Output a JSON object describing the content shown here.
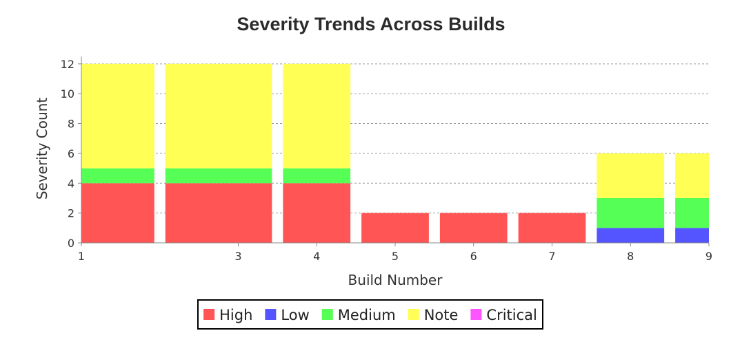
{
  "chart_data": {
    "type": "bar",
    "stacked": true,
    "title": "Severity Trends Across Builds",
    "xlabel": "Build Number",
    "ylabel": "Severity Count",
    "categories": [
      "1",
      "3",
      "4",
      "5",
      "6",
      "7",
      "8",
      "9"
    ],
    "x_ticks": [
      "1",
      "3",
      "4",
      "5",
      "6",
      "7",
      "8",
      "9"
    ],
    "y_ticks": [
      "0",
      "2",
      "4",
      "6",
      "8",
      "10",
      "12"
    ],
    "ylim": [
      0,
      12.5
    ],
    "grid": true,
    "legend_position": "bottom",
    "series": [
      {
        "name": "High",
        "color": "#ff5555",
        "values": [
          4,
          4,
          4,
          2,
          2,
          2,
          0,
          0
        ]
      },
      {
        "name": "Low",
        "color": "#5555ff",
        "values": [
          0,
          0,
          0,
          0,
          0,
          0,
          1,
          1
        ]
      },
      {
        "name": "Medium",
        "color": "#55ff55",
        "values": [
          1,
          1,
          1,
          0,
          0,
          0,
          2,
          2
        ]
      },
      {
        "name": "Note",
        "color": "#ffff55",
        "values": [
          7,
          7,
          7,
          0,
          0,
          0,
          3,
          3
        ]
      },
      {
        "name": "Critical",
        "color": "#ff55ff",
        "values": [
          0,
          0,
          0,
          0,
          0,
          0,
          0,
          0
        ]
      }
    ]
  }
}
